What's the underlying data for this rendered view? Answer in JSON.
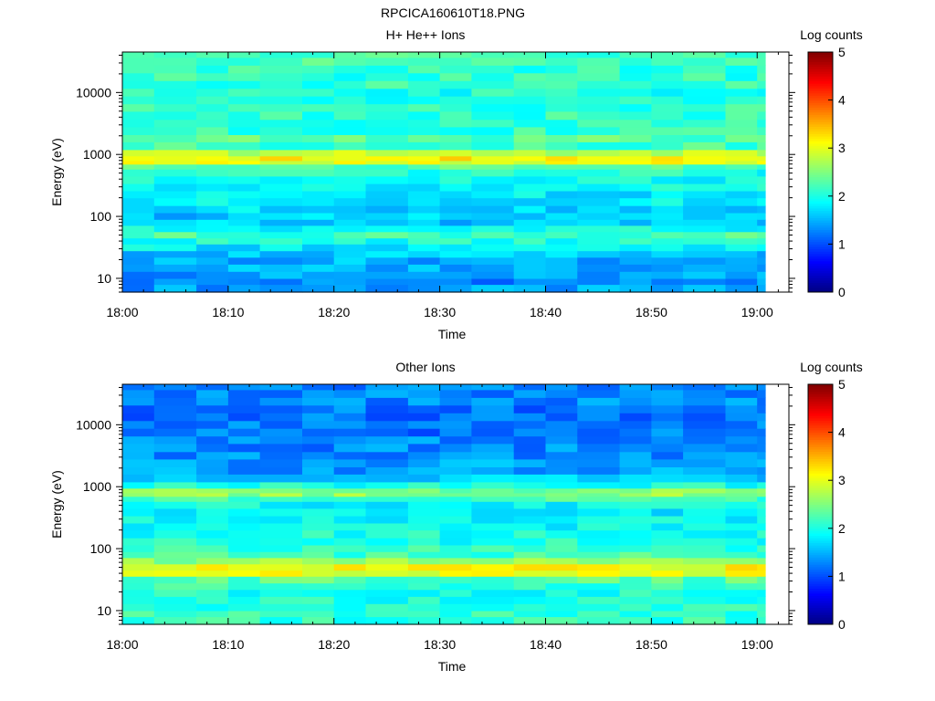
{
  "figure_title": "RPCICA160610T18.PNG",
  "chart_data": [
    {
      "type": "heatmap",
      "title": "H+ He++ Ions",
      "xlabel": "Time",
      "ylabel": "Energy (eV)",
      "x_ticks": [
        "18:00",
        "18:10",
        "18:20",
        "18:30",
        "18:40",
        "18:50",
        "19:00"
      ],
      "y_ticks": [
        "10",
        "100",
        "1000",
        "10000"
      ],
      "y_scale": "log",
      "ylim": [
        6,
        45000
      ],
      "xlim": [
        "18:00",
        "19:03"
      ],
      "colorbar": {
        "label": "Log counts",
        "ticks": [
          "0",
          "1",
          "2",
          "3",
          "4",
          "5"
        ],
        "range": [
          0,
          5
        ]
      },
      "time_bins": [
        "18:00",
        "18:03",
        "18:07",
        "18:10",
        "18:13",
        "18:17",
        "18:20",
        "18:23",
        "18:27",
        "18:30",
        "18:33",
        "18:37",
        "18:40",
        "18:43",
        "18:47",
        "18:50",
        "18:53",
        "18:57",
        "19:00"
      ],
      "energy_profile": {
        "energy_eV": [
          6,
          8,
          10,
          13,
          17,
          22,
          28,
          36,
          45,
          57,
          72,
          90,
          115,
          150,
          200,
          260,
          340,
          450,
          580,
          700,
          800,
          950,
          1200,
          1600,
          2100,
          2800,
          3700,
          5000,
          6600,
          8800,
          11700,
          15600,
          20800,
          27700,
          37000,
          45000
        ],
        "log_counts": [
          1.4,
          1.3,
          1.4,
          1.5,
          1.5,
          1.6,
          1.8,
          2.0,
          2.2,
          1.9,
          1.6,
          1.6,
          1.7,
          1.8,
          1.8,
          1.9,
          1.9,
          2.0,
          2.3,
          3.0,
          3.2,
          2.8,
          2.2,
          2.3,
          2.1,
          2.1,
          2.1,
          2.1,
          2.0,
          2.0,
          2.1,
          2.1,
          2.1,
          2.2,
          2.2,
          2.2
        ]
      },
      "peak": {
        "energy_eV": 750,
        "log_counts": 3.3
      }
    },
    {
      "type": "heatmap",
      "title": "Other Ions",
      "xlabel": "Time",
      "ylabel": "Energy (eV)",
      "x_ticks": [
        "18:00",
        "18:10",
        "18:20",
        "18:30",
        "18:40",
        "18:50",
        "19:00"
      ],
      "y_ticks": [
        "10",
        "100",
        "1000",
        "10000"
      ],
      "y_scale": "log",
      "ylim": [
        6,
        45000
      ],
      "xlim": [
        "18:00",
        "19:03"
      ],
      "colorbar": {
        "label": "Log counts",
        "ticks": [
          "0",
          "1",
          "2",
          "3",
          "4",
          "5"
        ],
        "range": [
          0,
          5
        ]
      },
      "time_bins": [
        "18:00",
        "18:03",
        "18:07",
        "18:10",
        "18:13",
        "18:17",
        "18:20",
        "18:23",
        "18:27",
        "18:30",
        "18:33",
        "18:37",
        "18:40",
        "18:43",
        "18:47",
        "18:50",
        "18:53",
        "18:57",
        "19:00"
      ],
      "energy_profile": {
        "energy_eV": [
          6,
          8,
          10,
          13,
          17,
          22,
          28,
          36,
          45,
          57,
          72,
          90,
          115,
          150,
          200,
          260,
          340,
          450,
          580,
          700,
          800,
          950,
          1200,
          1600,
          2100,
          2800,
          3700,
          5000,
          6600,
          8800,
          11700,
          15600,
          20800,
          27700,
          37000,
          45000
        ],
        "log_counts": [
          2.1,
          2.1,
          2.1,
          2.0,
          2.0,
          2.1,
          2.3,
          3.0,
          3.1,
          2.6,
          2.2,
          2.1,
          2.0,
          2.0,
          1.9,
          1.9,
          1.8,
          1.9,
          2.2,
          2.6,
          2.5,
          2.0,
          1.6,
          1.4,
          1.4,
          1.3,
          1.3,
          1.3,
          1.2,
          1.2,
          1.2,
          1.2,
          1.3,
          1.3,
          1.3,
          1.3
        ]
      },
      "peak": {
        "energy_eV": 40,
        "log_counts": 3.3
      }
    }
  ]
}
